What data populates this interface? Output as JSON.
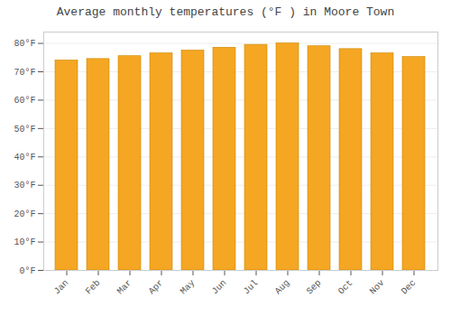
{
  "chart_data": {
    "type": "bar",
    "title": "Average monthly temperatures (°F ) in Moore Town",
    "categories": [
      "Jan",
      "Feb",
      "Mar",
      "Apr",
      "May",
      "Jun",
      "Jul",
      "Aug",
      "Sep",
      "Oct",
      "Nov",
      "Dec"
    ],
    "values": [
      74.0,
      74.5,
      75.5,
      76.5,
      77.5,
      78.5,
      79.5,
      80.0,
      79.0,
      78.0,
      76.5,
      75.2
    ],
    "color": "#F5A623",
    "ylim": [
      0,
      84
    ],
    "yticks": [
      {
        "value": 0,
        "label": "0°F"
      },
      {
        "value": 10,
        "label": "10°F"
      },
      {
        "value": 20,
        "label": "20°F"
      },
      {
        "value": 30,
        "label": "30°F"
      },
      {
        "value": 40,
        "label": "40°F"
      },
      {
        "value": 50,
        "label": "50°F"
      },
      {
        "value": 60,
        "label": "60°F"
      },
      {
        "value": 70,
        "label": "70°F"
      },
      {
        "value": 80,
        "label": "80°F"
      }
    ],
    "grid": true
  }
}
